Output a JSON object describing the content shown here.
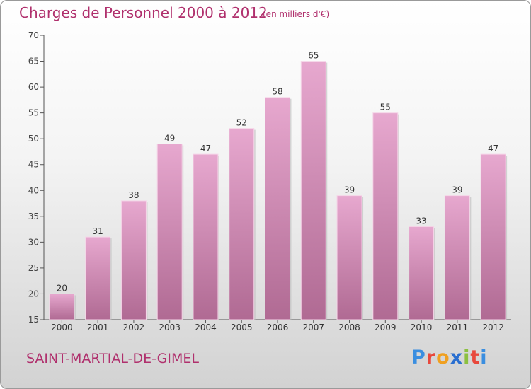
{
  "header": {
    "title": "Charges de Personnel 2000 à 2012",
    "unit": "(en milliers d'€)"
  },
  "footer": {
    "commune": "SAINT-MARTIAL-DE-GIMEL",
    "logo_letters": [
      "P",
      "r",
      "o",
      "x",
      "i",
      "t",
      "i"
    ],
    "logo_colors": [
      "#3a8ee0",
      "#e8483c",
      "#f0a020",
      "#2a6fd0",
      "#8cc040",
      "#e8483c",
      "#3a8ee0"
    ]
  },
  "colors": {
    "accent": "#b0306d",
    "bar_light": "#e7a8cf",
    "bar_dark": "#b06a93",
    "axis": "#555555"
  },
  "chart_data": {
    "type": "bar",
    "title": "Charges de Personnel 2000 à 2012",
    "subtitle": "(en milliers d'€)",
    "categories": [
      "2000",
      "2001",
      "2002",
      "2003",
      "2004",
      "2005",
      "2006",
      "2007",
      "2008",
      "2009",
      "2010",
      "2011",
      "2012"
    ],
    "values": [
      20,
      31,
      38,
      49,
      47,
      52,
      58,
      65,
      39,
      55,
      33,
      39,
      47
    ],
    "ylim": [
      15,
      70
    ],
    "yticks": [
      15,
      20,
      25,
      30,
      35,
      40,
      45,
      50,
      55,
      60,
      65,
      70
    ],
    "grid": false
  }
}
